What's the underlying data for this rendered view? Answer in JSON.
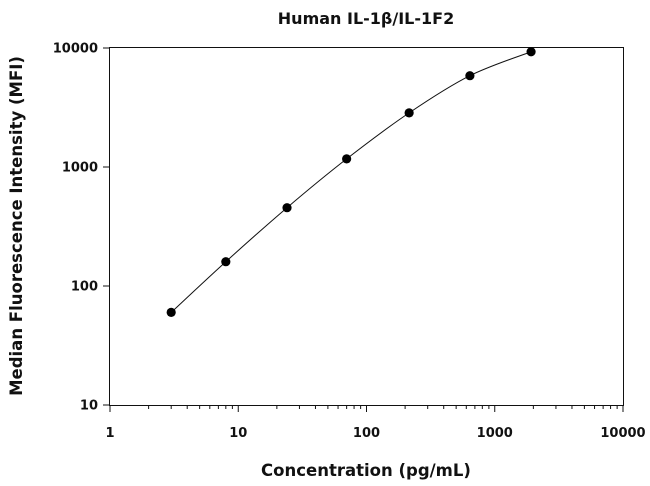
{
  "chart_data": {
    "type": "scatter",
    "title": "Human IL-1β/IL-1F2",
    "xlabel": "Concentration (pg/mL)",
    "ylabel": "Median Fluorescence Intensity (MFI)",
    "x_scale": "log",
    "y_scale": "log",
    "xlim": [
      1,
      10000
    ],
    "ylim": [
      10,
      10000
    ],
    "x_ticks": [
      "1",
      "10",
      "100",
      "1000",
      "10000"
    ],
    "y_ticks": [
      "10",
      "100",
      "1000",
      "10000"
    ],
    "grid": false,
    "legend": "none",
    "series": [
      {
        "x": [
          3,
          8,
          24,
          70,
          215,
          640,
          1920
        ],
        "y": [
          60,
          160,
          455,
          1170,
          2850,
          5850,
          9300
        ]
      }
    ],
    "fit_curve": true,
    "colors": {
      "marker": "#000000",
      "line": "#111111",
      "axes": "#111111"
    }
  }
}
